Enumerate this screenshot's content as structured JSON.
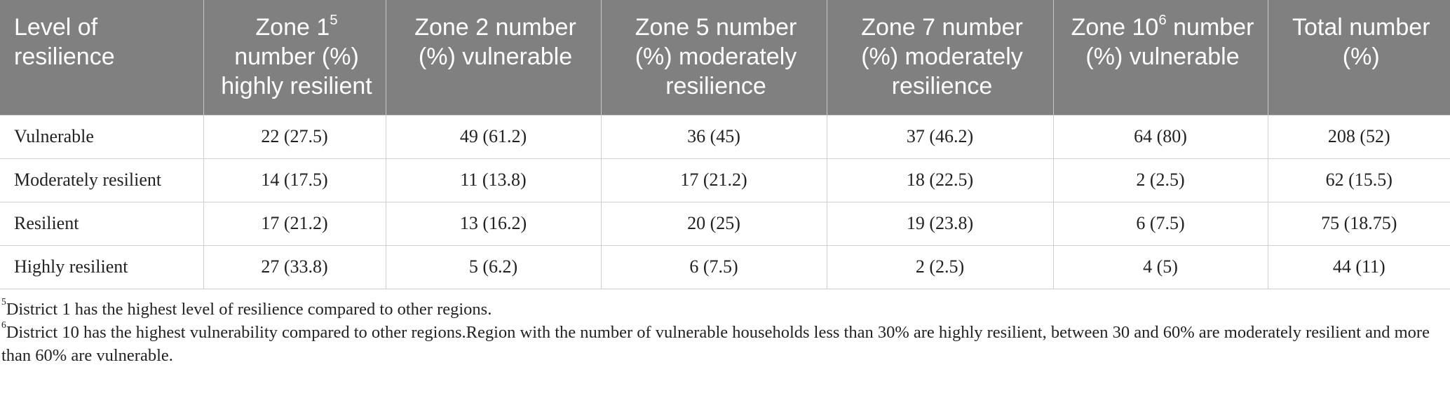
{
  "table": {
    "headers": [
      {
        "text": "Level of resilience",
        "sup": "",
        "rest": ""
      },
      {
        "text": "Zone 1",
        "sup": "5",
        "rest": " number (%) highly resilient"
      },
      {
        "text": "Zone 2 number (%) vulnerable",
        "sup": "",
        "rest": ""
      },
      {
        "text": "Zone 5 number (%) moderately resilience",
        "sup": "",
        "rest": ""
      },
      {
        "text": "Zone 7 number (%) moderately resilience",
        "sup": "",
        "rest": ""
      },
      {
        "text": "Zone 10",
        "sup": "6",
        "rest": " number (%) vulnerable"
      },
      {
        "text": "Total number (%)",
        "sup": "",
        "rest": ""
      }
    ],
    "rows": [
      [
        "Vulnerable",
        "22 (27.5)",
        "49 (61.2)",
        "36 (45)",
        "37 (46.2)",
        "64 (80)",
        "208 (52)"
      ],
      [
        "Moderately resilient",
        "14 (17.5)",
        "11 (13.8)",
        "17 (21.2)",
        "18 (22.5)",
        "2 (2.5)",
        "62 (15.5)"
      ],
      [
        "Resilient",
        "17 (21.2)",
        "13 (16.2)",
        "20 (25)",
        "19 (23.8)",
        "6 (7.5)",
        "75 (18.75)"
      ],
      [
        "Highly resilient",
        "27 (33.8)",
        "5 (6.2)",
        "6 (7.5)",
        "2 (2.5)",
        "4 (5)",
        "44 (11)"
      ]
    ]
  },
  "footnotes": [
    {
      "mark": "5",
      "text": "District 1 has the highest level of resilience compared to other regions."
    },
    {
      "mark": "6",
      "text": "District 10 has the highest vulnerability compared to other regions.Region with the number of vulnerable households less than 30% are highly resilient, between 30 and 60% are moderately resilient and more than 60% are vulnerable."
    }
  ],
  "colors": {
    "header_bg": "#808080",
    "header_text": "#ffffff",
    "grid": "#cfcfcf"
  }
}
